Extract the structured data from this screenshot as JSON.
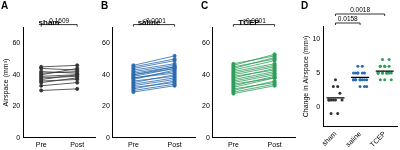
{
  "chart_data": [
    {
      "panel": "A",
      "type": "line",
      "title": "sham",
      "categories": [
        "Pre",
        "Post"
      ],
      "y_label": "Airspace (mm³)",
      "ylim": [
        0,
        70
      ],
      "yticks": [
        0,
        20,
        40,
        60
      ],
      "grid": false,
      "color": "#333333",
      "marker": "circle",
      "series": [
        {
          "values": [
            38,
            39
          ]
        },
        {
          "values": [
            42,
            41
          ]
        },
        {
          "values": [
            35,
            38
          ]
        },
        {
          "values": [
            40,
            44
          ]
        },
        {
          "values": [
            44,
            43
          ]
        },
        {
          "values": [
            33,
            35
          ]
        },
        {
          "values": [
            39,
            40
          ]
        },
        {
          "values": [
            41,
            42
          ]
        },
        {
          "values": [
            36,
            37
          ]
        },
        {
          "values": [
            30,
            31
          ]
        },
        {
          "values": [
            45,
            46
          ]
        },
        {
          "values": [
            37,
            40
          ]
        }
      ],
      "annotations": [
        {
          "text": "0.1609",
          "from": "Pre",
          "to": "Post"
        }
      ]
    },
    {
      "panel": "B",
      "type": "line",
      "title": "saline",
      "categories": [
        "Pre",
        "Post"
      ],
      "ylim": [
        0,
        70
      ],
      "yticks": [
        0,
        20,
        40,
        60
      ],
      "grid": false,
      "color": "#2b6cb0",
      "marker": "circle",
      "series": [
        {
          "values": [
            30,
            34
          ]
        },
        {
          "values": [
            33,
            37
          ]
        },
        {
          "values": [
            35,
            40
          ]
        },
        {
          "values": [
            38,
            42
          ]
        },
        {
          "values": [
            40,
            45
          ]
        },
        {
          "values": [
            42,
            46
          ]
        },
        {
          "values": [
            36,
            39
          ]
        },
        {
          "values": [
            44,
            49
          ]
        },
        {
          "values": [
            31,
            36
          ]
        },
        {
          "values": [
            39,
            44
          ]
        },
        {
          "values": [
            41,
            45
          ]
        },
        {
          "values": [
            37,
            43
          ]
        },
        {
          "values": [
            45,
            50
          ]
        },
        {
          "values": [
            29,
            33
          ]
        },
        {
          "values": [
            34,
            38
          ]
        },
        {
          "values": [
            43,
            47
          ]
        },
        {
          "values": [
            46,
            52
          ]
        },
        {
          "values": [
            32,
            35
          ]
        },
        {
          "values": [
            40,
            44
          ]
        },
        {
          "values": [
            38,
            41
          ]
        }
      ],
      "annotations": [
        {
          "text": "<0.0001",
          "from": "Pre",
          "to": "Post"
        }
      ]
    },
    {
      "panel": "C",
      "type": "line",
      "title": "TCEP",
      "categories": [
        "Pre",
        "Post"
      ],
      "ylim": [
        0,
        70
      ],
      "yticks": [
        0,
        20,
        40,
        60
      ],
      "grid": false,
      "color": "#2e9e5b",
      "marker": "circle",
      "series": [
        {
          "values": [
            28,
            33
          ]
        },
        {
          "values": [
            32,
            38
          ]
        },
        {
          "values": [
            35,
            40
          ]
        },
        {
          "values": [
            38,
            44
          ]
        },
        {
          "values": [
            41,
            46
          ]
        },
        {
          "values": [
            43,
            49
          ]
        },
        {
          "values": [
            36,
            41
          ]
        },
        {
          "values": [
            45,
            50
          ]
        },
        {
          "values": [
            30,
            36
          ]
        },
        {
          "values": [
            40,
            45
          ]
        },
        {
          "values": [
            33,
            39
          ]
        },
        {
          "values": [
            37,
            42
          ]
        },
        {
          "values": [
            44,
            51
          ]
        },
        {
          "values": [
            39,
            43
          ]
        },
        {
          "values": [
            42,
            47
          ]
        },
        {
          "values": [
            34,
            38
          ]
        },
        {
          "values": [
            46,
            53
          ]
        },
        {
          "values": [
            31,
            35
          ]
        },
        {
          "values": [
            29,
            34
          ]
        },
        {
          "values": [
            47,
            52
          ]
        }
      ],
      "annotations": [
        {
          "text": "<0.0001",
          "from": "Pre",
          "to": "Post"
        }
      ]
    },
    {
      "panel": "D",
      "type": "scatter",
      "categories": [
        "sham",
        "saline",
        "TCEP"
      ],
      "y_label": "Change in Airspace (mm³)",
      "ylim": [
        -3,
        12
      ],
      "yticks": [
        0,
        5,
        10
      ],
      "grid": false,
      "marker": "circle",
      "colors": [
        "#333333",
        "#2b6cb0",
        "#2e9e5b"
      ],
      "values": [
        [
          1,
          -1,
          3,
          4,
          -1,
          2,
          1,
          1,
          1,
          1,
          1,
          3
        ],
        [
          4,
          4,
          5,
          4,
          5,
          4,
          3,
          5,
          5,
          5,
          4,
          6,
          5,
          4,
          4,
          4,
          6,
          3,
          4,
          3
        ],
        [
          5,
          6,
          5,
          6,
          5,
          6,
          5,
          5,
          6,
          5,
          6,
          5,
          7,
          4,
          5,
          4,
          7,
          4,
          5,
          5
        ]
      ],
      "means": [
        1.3,
        4.35,
        5.3
      ],
      "annotations": [
        {
          "text": "0.0158",
          "from": "sham",
          "to": "saline"
        },
        {
          "text": "0.0018",
          "from": "sham",
          "to": "TCEP"
        }
      ]
    }
  ]
}
